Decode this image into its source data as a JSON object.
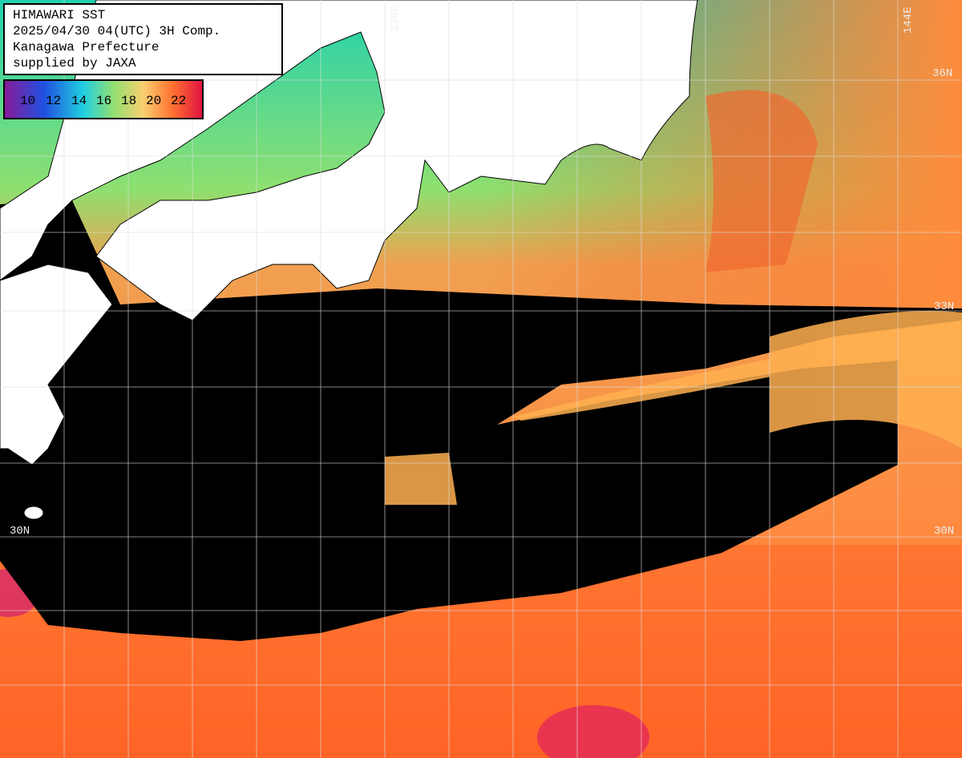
{
  "header": {
    "lines": [
      "HIMAWARI SST",
      "2025/04/30 04(UTC) 3H Comp.",
      "Kanagawa Prefecture",
      "supplied by JAXA"
    ]
  },
  "legend": {
    "labels": [
      "10",
      "12",
      "14",
      "16",
      "18",
      "20",
      "22"
    ]
  },
  "grid_labels": {
    "longitude": [
      "136E",
      "144E"
    ],
    "latitude": [
      "36N",
      "33N",
      "30N",
      "30N"
    ]
  }
}
